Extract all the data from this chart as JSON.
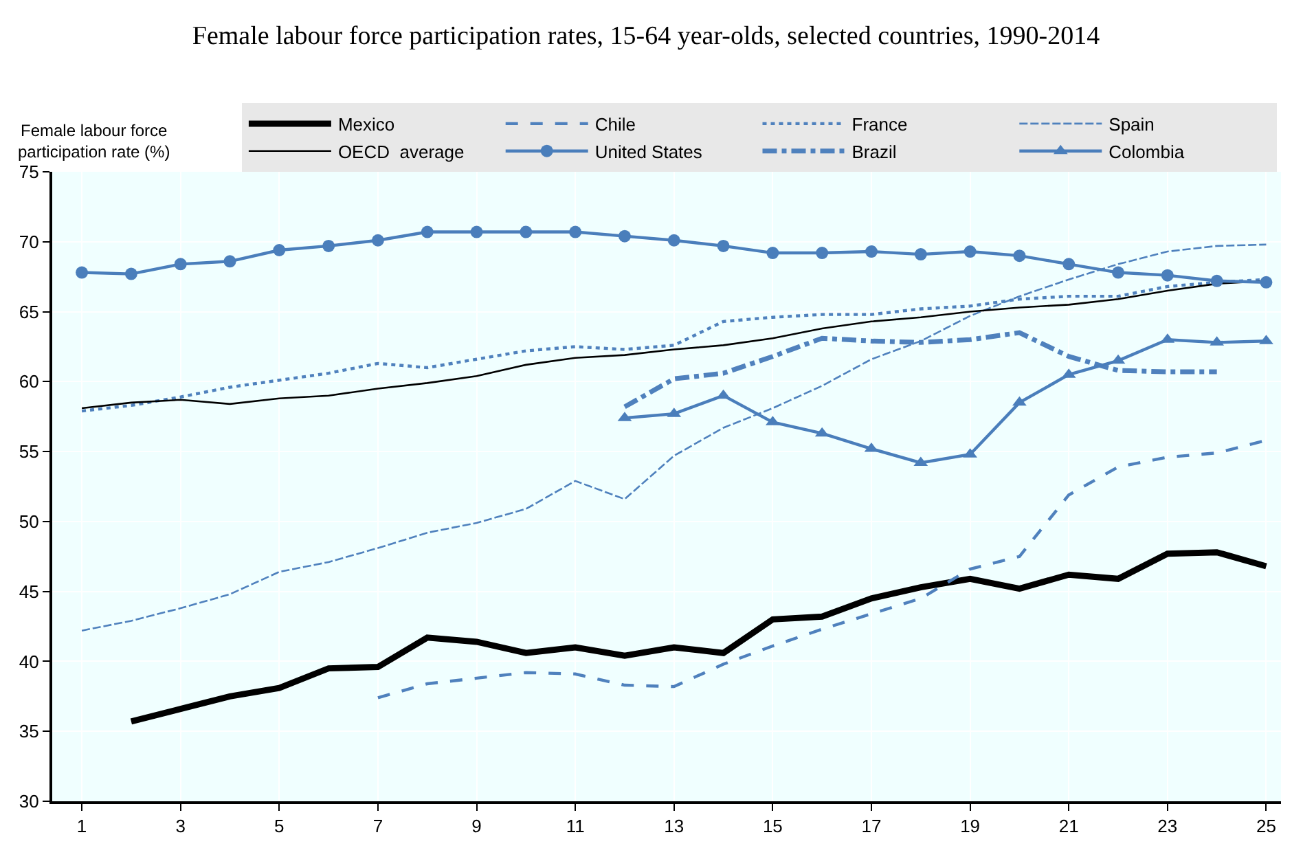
{
  "chart_data": {
    "type": "line",
    "title": "Female labour force participation rates, 15-64 year-olds, selected countries, 1990-2014",
    "ylabel": "Female labour force participation rate (%)",
    "x": [
      1,
      2,
      3,
      4,
      5,
      6,
      7,
      8,
      9,
      10,
      11,
      12,
      13,
      14,
      15,
      16,
      17,
      18,
      19,
      20,
      21,
      22,
      23,
      24,
      25
    ],
    "xlim": [
      0.4,
      25.3
    ],
    "xticks": [
      1,
      3,
      5,
      7,
      9,
      11,
      13,
      15,
      17,
      19,
      21,
      23,
      25
    ],
    "ylim": [
      30,
      75
    ],
    "yticks": [
      30,
      35,
      40,
      45,
      50,
      55,
      60,
      65,
      70,
      75
    ],
    "grid": true,
    "legend": "top",
    "series": [
      {
        "name": "Mexico",
        "color": "#000000",
        "line_style": "solid",
        "marker": "none",
        "values": [
          null,
          35.7,
          36.6,
          37.5,
          38.1,
          39.5,
          39.6,
          41.7,
          41.4,
          40.6,
          41.0,
          40.4,
          41.0,
          40.6,
          43.0,
          43.2,
          44.5,
          45.3,
          45.9,
          45.2,
          46.2,
          45.9,
          47.7,
          47.8,
          46.8
        ]
      },
      {
        "name": "Chile",
        "color": "#4f81bd",
        "line_style": "dashed",
        "marker": "none",
        "values": [
          null,
          null,
          null,
          null,
          null,
          null,
          37.4,
          38.4,
          38.8,
          39.2,
          39.1,
          38.3,
          38.2,
          39.8,
          41.1,
          42.3,
          43.4,
          44.5,
          46.6,
          47.5,
          51.9,
          53.9,
          54.6,
          54.9,
          55.8
        ]
      },
      {
        "name": "France",
        "color": "#4f81bd",
        "line_style": "dotted",
        "marker": "none",
        "values": [
          57.9,
          58.3,
          58.9,
          59.6,
          60.1,
          60.6,
          61.3,
          61.0,
          61.6,
          62.2,
          62.5,
          62.3,
          62.6,
          64.3,
          64.6,
          64.8,
          64.8,
          65.2,
          65.4,
          65.9,
          66.1,
          66.1,
          66.8,
          67.1,
          67.3
        ]
      },
      {
        "name": "Spain",
        "color": "#4f81bd",
        "line_style": "longdash",
        "marker": "none",
        "values": [
          42.2,
          42.9,
          43.8,
          44.8,
          46.4,
          47.1,
          48.1,
          49.2,
          49.9,
          50.9,
          52.9,
          51.6,
          54.7,
          56.7,
          58.1,
          59.7,
          61.6,
          62.9,
          64.7,
          66.1,
          67.3,
          68.4,
          69.3,
          69.7,
          69.8
        ]
      },
      {
        "name": "OECD  average",
        "color": "#000000",
        "line_style": "solid",
        "marker": "none",
        "values": [
          58.1,
          58.5,
          58.7,
          58.4,
          58.8,
          59.0,
          59.5,
          59.9,
          60.4,
          61.2,
          61.7,
          61.9,
          62.3,
          62.6,
          63.1,
          63.8,
          64.3,
          64.6,
          65.0,
          65.3,
          65.5,
          65.9,
          66.5,
          67.0,
          67.2
        ]
      },
      {
        "name": "United States",
        "color": "#4a7ebb",
        "line_style": "solid",
        "marker": "circle",
        "values": [
          67.8,
          67.7,
          68.4,
          68.6,
          69.4,
          69.7,
          70.1,
          70.7,
          70.7,
          70.7,
          70.7,
          70.4,
          70.1,
          69.7,
          69.2,
          69.2,
          69.3,
          69.1,
          69.3,
          69.0,
          68.4,
          67.8,
          67.6,
          67.2,
          67.1
        ]
      },
      {
        "name": "Brazil",
        "color": "#4f81bd",
        "line_style": "dashdot",
        "marker": "none",
        "values": [
          null,
          null,
          null,
          null,
          null,
          null,
          null,
          null,
          null,
          null,
          null,
          58.2,
          60.2,
          60.6,
          61.8,
          63.1,
          62.9,
          62.8,
          63.0,
          63.5,
          61.8,
          60.8,
          60.7,
          60.7,
          null
        ]
      },
      {
        "name": "Colombia",
        "color": "#4a7ebb",
        "line_style": "solid",
        "marker": "triangle",
        "values": [
          null,
          null,
          null,
          null,
          null,
          null,
          null,
          null,
          null,
          null,
          null,
          57.4,
          57.7,
          59.0,
          57.1,
          56.3,
          55.2,
          54.2,
          54.8,
          58.5,
          60.5,
          61.5,
          63.0,
          62.8,
          62.9
        ]
      }
    ]
  }
}
